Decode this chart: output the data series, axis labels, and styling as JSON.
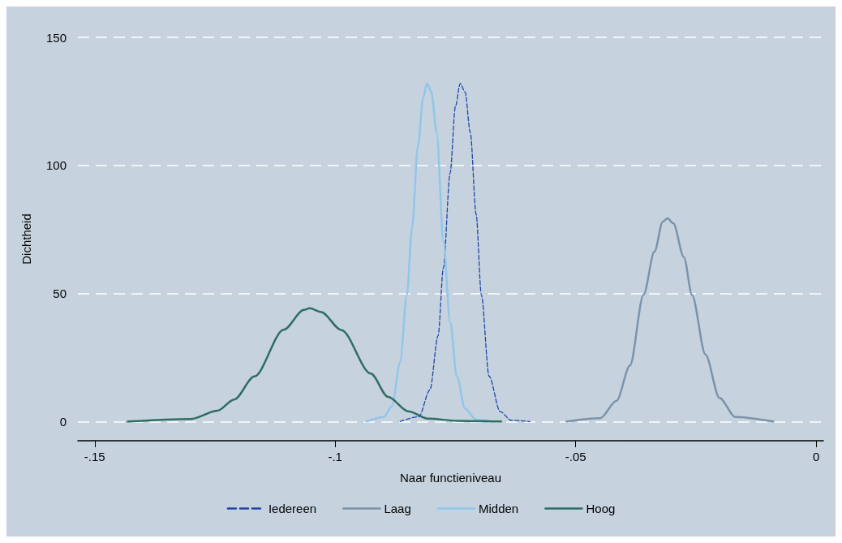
{
  "chart_data": {
    "type": "line",
    "xlabel": "Naar functieniveau",
    "ylabel": "Dichtheid",
    "xlim": [
      -0.1535,
      0.0015
    ],
    "ylim": [
      -7.5,
      150
    ],
    "xticks": [
      {
        "value": -0.15,
        "label": "-.15"
      },
      {
        "value": -0.1,
        "label": "-.1"
      },
      {
        "value": -0.05,
        "label": "-.05"
      },
      0
    ],
    "yticks": [
      0,
      50,
      100,
      150
    ],
    "grid": "y",
    "legend": "bottom",
    "marker": "none",
    "series": [
      {
        "name": "Iedereen",
        "color": "#1f45a8",
        "line_style": "dashed",
        "x": [
          -0.0865,
          -0.0826,
          -0.0803,
          -0.0786,
          -0.0775,
          -0.0761,
          -0.075,
          -0.074,
          -0.073,
          -0.0719,
          -0.0707,
          -0.0696,
          -0.068,
          -0.0657,
          -0.0634,
          -0.0595
        ],
        "values": [
          0,
          1.9,
          12.4,
          33.5,
          60,
          97,
          123,
          132,
          128.7,
          112.8,
          81,
          49.4,
          17.7,
          3.9,
          0.5,
          0
        ]
      },
      {
        "name": "Laag",
        "color": "#7b93aa",
        "line_style": "solid",
        "x": [
          -0.0519,
          -0.0449,
          -0.0415,
          -0.0387,
          -0.0359,
          -0.0336,
          -0.0319,
          -0.0309,
          -0.0297,
          -0.0275,
          -0.0258,
          -0.023,
          -0.0201,
          -0.0168,
          -0.0089
        ],
        "values": [
          0,
          1.3,
          8.1,
          21.9,
          49.4,
          66.4,
          78,
          79.3,
          77.4,
          64.2,
          49.4,
          26.1,
          9.2,
          1.8,
          0
        ]
      },
      {
        "name": "Midden",
        "color": "#8ec7ea",
        "line_style": "solid",
        "x": [
          -0.0935,
          -0.0899,
          -0.0882,
          -0.0865,
          -0.0851,
          -0.084,
          -0.0828,
          -0.0817,
          -0.0809,
          -0.08,
          -0.0789,
          -0.0775,
          -0.0761,
          -0.0747,
          -0.073,
          -0.0707,
          -0.0674
        ],
        "values": [
          0,
          1.8,
          6,
          23,
          49.4,
          75.8,
          107.5,
          126.5,
          132,
          128.7,
          112.8,
          70.5,
          38.8,
          17.7,
          5,
          0.7,
          0
        ]
      },
      {
        "name": "Hoog",
        "color": "#2e6e62",
        "line_style": "solid",
        "x": [
          -0.1431,
          -0.13,
          -0.1245,
          -0.121,
          -0.1168,
          -0.1107,
          -0.1065,
          -0.1053,
          -0.1029,
          -0.0987,
          -0.0926,
          -0.089,
          -0.0848,
          -0.0806,
          -0.0746,
          -0.0655
        ],
        "values": [
          0,
          1,
          4.2,
          8.6,
          17.6,
          35.8,
          43.6,
          44.2,
          42.7,
          35.7,
          18.7,
          9.6,
          4,
          1.1,
          0.3,
          0
        ]
      }
    ]
  }
}
